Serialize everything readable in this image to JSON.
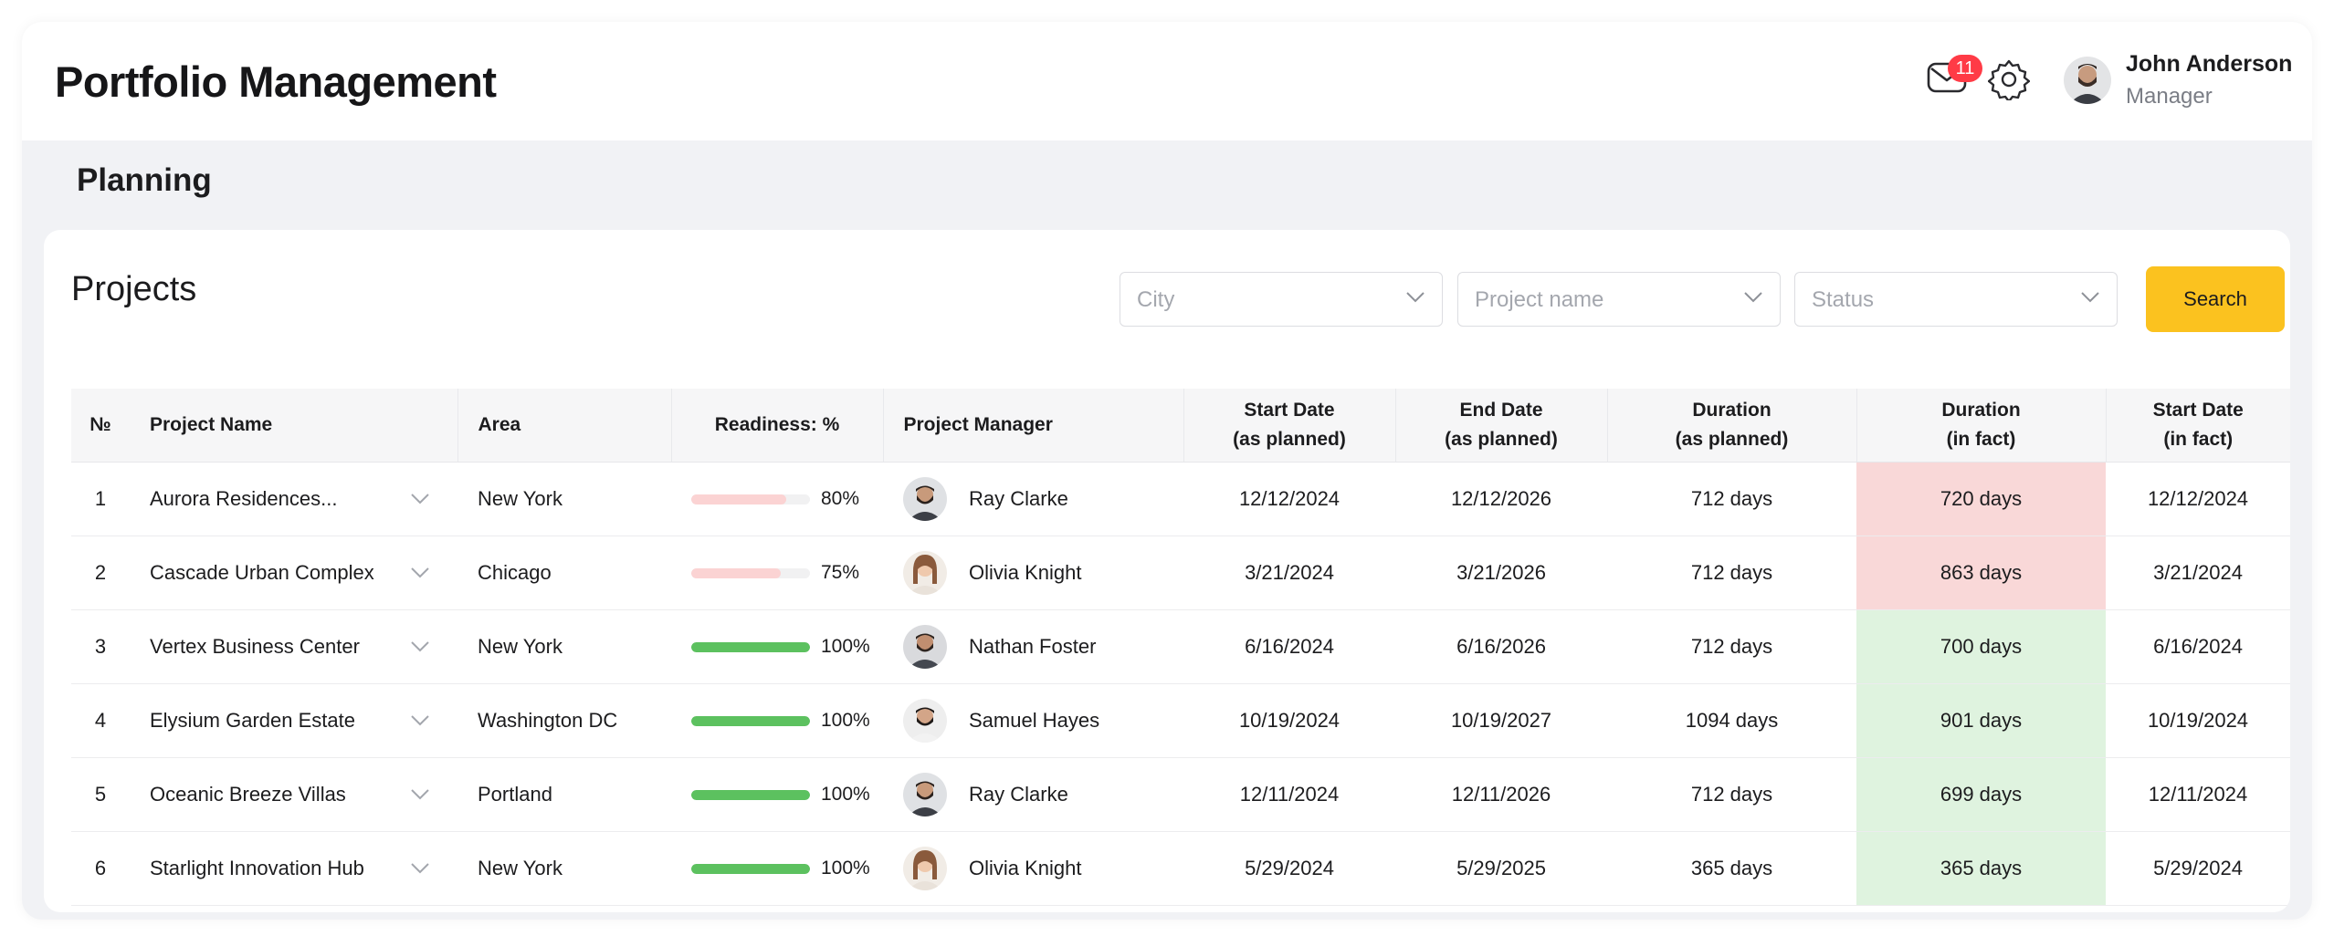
{
  "app": {
    "title": "Portfolio Management"
  },
  "header": {
    "notifications_count": "11",
    "user": {
      "name": "John Anderson",
      "role": "Manager"
    },
    "icons": [
      "mail-icon",
      "gear-icon",
      "user-avatar"
    ]
  },
  "section": {
    "title": "Planning"
  },
  "projects": {
    "title": "Projects",
    "filters": {
      "city_placeholder": "City",
      "project_name_placeholder": "Project name",
      "status_placeholder": "Status"
    },
    "search_label": "Search",
    "columns": {
      "num": "№",
      "project_name": "Project Name",
      "area": "Area",
      "readiness": "Readiness: %",
      "manager": "Project Manager",
      "start_planned_1": "Start Date",
      "start_planned_2": "(as planned)",
      "end_planned_1": "End Date",
      "end_planned_2": "(as planned)",
      "dur_planned_1": "Duration",
      "dur_planned_2": "(as planned)",
      "dur_fact_1": "Duration",
      "dur_fact_2": "(in fact)",
      "start_fact_1": "Start Date",
      "start_fact_2": "(in fact)"
    },
    "rows": [
      {
        "num": "1",
        "name": "Aurora Residences...",
        "area": "New York",
        "readiness": 80,
        "readiness_label": "80%",
        "manager": "Ray Clarke",
        "start_planned": "12/12/2024",
        "end_planned": "12/12/2026",
        "duration_planned": "712 days",
        "duration_fact": "720 days",
        "fact_status": "over",
        "start_fact": "12/12/2024"
      },
      {
        "num": "2",
        "name": "Cascade Urban Complex",
        "area": "Chicago",
        "readiness": 75,
        "readiness_label": "75%",
        "manager": "Olivia Knight",
        "start_planned": "3/21/2024",
        "end_planned": "3/21/2026",
        "duration_planned": "712 days",
        "duration_fact": "863 days",
        "fact_status": "over",
        "start_fact": "3/21/2024"
      },
      {
        "num": "3",
        "name": "Vertex Business Center",
        "area": "New York",
        "readiness": 100,
        "readiness_label": "100%",
        "manager": "Nathan Foster",
        "start_planned": "6/16/2024",
        "end_planned": "6/16/2026",
        "duration_planned": "712 days",
        "duration_fact": "700 days",
        "fact_status": "ok",
        "start_fact": "6/16/2024"
      },
      {
        "num": "4",
        "name": "Elysium Garden Estate",
        "area": "Washington DC",
        "readiness": 100,
        "readiness_label": "100%",
        "manager": "Samuel Hayes",
        "start_planned": "10/19/2024",
        "end_planned": "10/19/2027",
        "duration_planned": "1094 days",
        "duration_fact": "901 days",
        "fact_status": "ok",
        "start_fact": "10/19/2024"
      },
      {
        "num": "5",
        "name": "Oceanic Breeze Villas",
        "area": "Portland",
        "readiness": 100,
        "readiness_label": "100%",
        "manager": "Ray Clarke",
        "start_planned": "12/11/2024",
        "end_planned": "12/11/2026",
        "duration_planned": "712 days",
        "duration_fact": "699 days",
        "fact_status": "ok",
        "start_fact": "12/11/2024"
      },
      {
        "num": "6",
        "name": "Starlight Innovation Hub",
        "area": "New York",
        "readiness": 100,
        "readiness_label": "100%",
        "manager": "Olivia Knight",
        "start_planned": "5/29/2024",
        "end_planned": "5/29/2025",
        "duration_planned": "365 days",
        "duration_fact": "365 days",
        "fact_status": "ok",
        "start_fact": "5/29/2024"
      }
    ]
  },
  "colors": {
    "accent": "#fbc21f",
    "badge": "#ff3b46",
    "progress_partial": "#fbd3d3",
    "progress_complete": "#5cc15f",
    "fact_over_bg": "#f9d8d8",
    "fact_ok_bg": "#dff3df"
  }
}
